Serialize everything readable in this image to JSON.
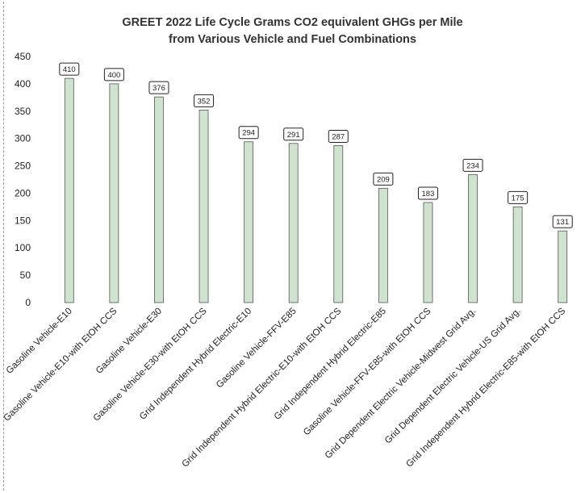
{
  "chart_data": {
    "type": "bar",
    "title_line1": "GREET 2022 Life Cycle Grams CO2 equivalent GHGs per Mile",
    "title_line2": "from Various Vehicle and Fuel Combinations",
    "xlabel": "",
    "ylabel": "",
    "ylim": [
      0,
      450
    ],
    "yticks": [
      "0",
      "50",
      "100",
      "150",
      "200",
      "250",
      "300",
      "350",
      "400",
      "450"
    ],
    "grid": false,
    "bar_color": "#cfe3cf",
    "bar_edge_color": "#555555",
    "categories": [
      "Gasoline Vehicle-E10",
      "Gasoline Vehicle-E10-with EtOH CCS",
      "Gasoline Vehicle-E30",
      "Gasoline Vehicle-E30-with EtOH CCS",
      "Grid Independent Hybrid Electric-E10",
      "Gasoline Vehicle-FFV-E85",
      "Grid Independent Hybrid Electric-E10-with EtOH CCS",
      "Grid Independent Hybrid Electric-E85",
      "Gasoline Vehicle-FFV-E85-with EtOH CCS",
      "Grid Dependent Electric Vehicle-Midwest Grid Avg.",
      "Grid Dependent Electric Vehicle-US Grid Avg.",
      "Grid Independent Hybrid Electric-E85-with EtOH CCS"
    ],
    "values": [
      410,
      400,
      376,
      352,
      294,
      291,
      287,
      209,
      183,
      234,
      175,
      131
    ],
    "data_labels": [
      "410",
      "400",
      "376",
      "352",
      "294",
      "291",
      "287",
      "209",
      "183",
      "234",
      "175",
      "131"
    ]
  }
}
